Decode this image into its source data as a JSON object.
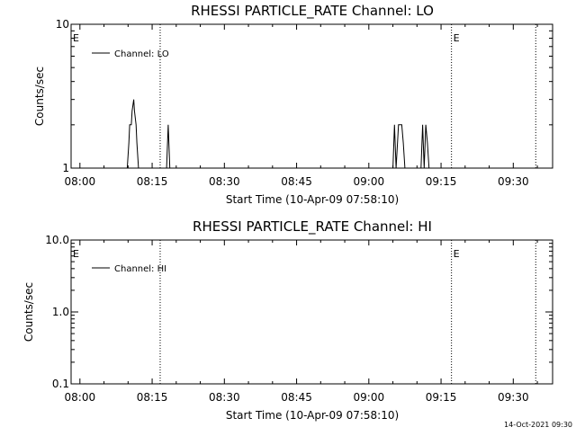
{
  "chart_data": [
    {
      "type": "line",
      "title": "RHESSI PARTICLE_RATE Channel: LO",
      "ylabel": "Counts/sec",
      "xlabel": "Start Time (10-Apr-09 07:58:10)",
      "y_scale": "log",
      "ylim": [
        1,
        10
      ],
      "ytick_labels": [
        "1",
        "10"
      ],
      "x_ticks": [
        "08:00",
        "08:15",
        "08:30",
        "08:45",
        "09:00",
        "09:15",
        "09:30"
      ],
      "xlim": [
        "07:58:10",
        "09:38:10"
      ],
      "legend": {
        "placement": "top-left",
        "entries": [
          "Channel: LO"
        ]
      },
      "series": [
        {
          "name": "Channel: LO",
          "x": [
            "08:09:50",
            "08:10:10",
            "08:10:20",
            "08:10:40",
            "08:10:50",
            "08:11:10",
            "08:11:20",
            "08:11:40",
            "08:11:50",
            "08:12:10",
            "08:18:00",
            "08:18:20",
            "08:18:40",
            "09:05:00",
            "09:05:20",
            "09:05:40",
            "09:06:10",
            "09:06:30",
            "09:06:50",
            "09:07:10",
            "09:07:30",
            "09:07:50",
            "09:08:10",
            "09:10:50",
            "09:11:10",
            "09:11:30",
            "09:11:50",
            "09:12:10",
            "09:12:30"
          ],
          "y": [
            1,
            1.5,
            2,
            2,
            2.5,
            3,
            2.5,
            2,
            1.5,
            1,
            1,
            2,
            1,
            1,
            2,
            1,
            2,
            2,
            2,
            1.5,
            1,
            1,
            1,
            1,
            2,
            1,
            2,
            1.5,
            1
          ]
        }
      ],
      "markers": [
        {
          "time": "07:58:10",
          "label": "E"
        },
        {
          "time": "08:16:40",
          "label": ""
        },
        {
          "time": "09:17:10",
          "label": "E"
        },
        {
          "time": "09:34:40",
          "label": ""
        }
      ]
    },
    {
      "type": "line",
      "title": "RHESSI PARTICLE_RATE Channel: HI",
      "ylabel": "Counts/sec",
      "xlabel": "Start Time (10-Apr-09 07:58:10)",
      "y_scale": "log",
      "ylim": [
        0.1,
        10
      ],
      "ytick_labels": [
        "0.1",
        "1.0",
        "10.0"
      ],
      "x_ticks": [
        "08:00",
        "08:15",
        "08:30",
        "08:45",
        "09:00",
        "09:15",
        "09:30"
      ],
      "xlim": [
        "07:58:10",
        "09:38:10"
      ],
      "legend": {
        "placement": "top-left",
        "entries": [
          "Channel: HI"
        ]
      },
      "series": [
        {
          "name": "Channel: HI",
          "x": [],
          "y": []
        }
      ],
      "markers": [
        {
          "time": "07:58:10",
          "label": "E"
        },
        {
          "time": "08:16:40",
          "label": ""
        },
        {
          "time": "09:17:10",
          "label": "E"
        },
        {
          "time": "09:34:40",
          "label": ""
        }
      ]
    }
  ],
  "footer": {
    "timestamp": "14-Oct-2021 09:30"
  }
}
